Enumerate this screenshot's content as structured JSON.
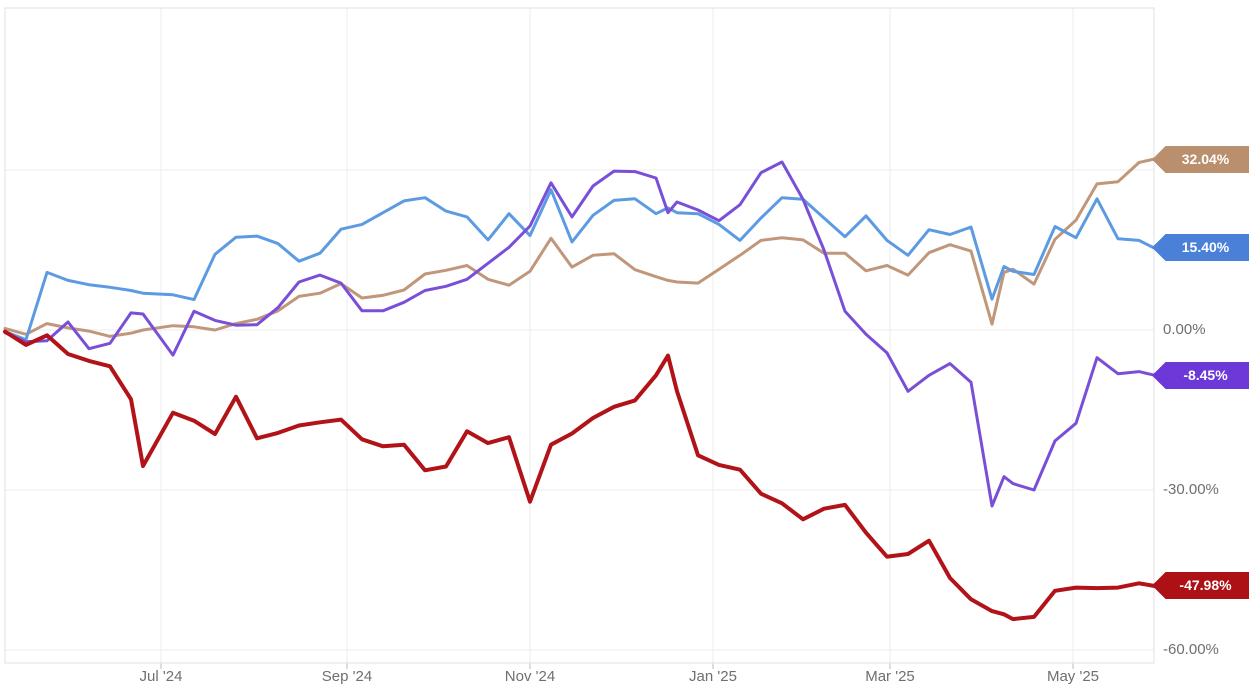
{
  "chart_data": {
    "type": "line",
    "title": "",
    "xlabel": "",
    "ylabel": "",
    "legend_position": "none",
    "grid": true,
    "y_unit": "percent",
    "ylim": [
      -62.5,
      60.5
    ],
    "x": [
      "2024-05-10",
      "2024-05-17",
      "2024-05-24",
      "2024-05-31",
      "2024-06-07",
      "2024-06-14",
      "2024-06-21",
      "2024-06-25",
      "2024-07-05",
      "2024-07-12",
      "2024-07-19",
      "2024-07-26",
      "2024-08-02",
      "2024-08-09",
      "2024-08-16",
      "2024-08-23",
      "2024-08-30",
      "2024-09-06",
      "2024-09-13",
      "2024-09-20",
      "2024-09-27",
      "2024-10-04",
      "2024-10-11",
      "2024-10-18",
      "2024-10-25",
      "2024-11-01",
      "2024-11-08",
      "2024-11-15",
      "2024-11-22",
      "2024-11-29",
      "2024-12-06",
      "2024-12-13",
      "2024-12-17",
      "2024-12-20",
      "2024-12-27",
      "2025-01-03",
      "2025-01-10",
      "2025-01-17",
      "2025-01-24",
      "2025-01-31",
      "2025-02-07",
      "2025-02-14",
      "2025-02-21",
      "2025-02-28",
      "2025-03-07",
      "2025-03-14",
      "2025-03-21",
      "2025-03-28",
      "2025-04-04",
      "2025-04-08",
      "2025-04-11",
      "2025-04-18",
      "2025-04-25",
      "2025-05-02",
      "2025-05-09",
      "2025-05-16",
      "2025-05-23",
      "2025-05-28"
    ],
    "series": [
      {
        "name": "tan-series",
        "color": "#C0977A",
        "label_color": "#B98F6E",
        "end_label": "32.04%",
        "end_value": 32.04,
        "line_width": 3,
        "values": [
          0.3,
          -0.8,
          1.2,
          0.4,
          -0.2,
          -1.2,
          -0.6,
          0.0,
          0.8,
          0.6,
          0.0,
          1.2,
          2.0,
          3.6,
          6.3,
          6.9,
          8.7,
          6.0,
          6.5,
          7.5,
          10.5,
          11.2,
          12.1,
          9.5,
          8.4,
          11.0,
          17.2,
          11.8,
          14.0,
          14.3,
          11.3,
          10.0,
          9.3,
          9.0,
          8.8,
          11.4,
          14.0,
          16.8,
          17.3,
          16.9,
          14.4,
          14.4,
          11.1,
          12.1,
          10.3,
          14.5,
          16.0,
          14.8,
          1.1,
          10.8,
          11.4,
          8.6,
          17.0,
          20.6,
          27.4,
          27.8,
          31.4,
          32.04
        ]
      },
      {
        "name": "blue-series",
        "color": "#5C9BE2",
        "label_color": "#4A80D8",
        "end_label": "15.40%",
        "end_value": 15.4,
        "line_width": 3,
        "values": [
          -0.3,
          -1.8,
          10.8,
          9.3,
          8.5,
          8.0,
          7.4,
          6.9,
          6.6,
          5.7,
          14.2,
          17.4,
          17.6,
          16.2,
          12.9,
          14.4,
          18.9,
          19.8,
          22.0,
          24.2,
          24.8,
          22.3,
          21.2,
          16.9,
          21.8,
          17.7,
          26.3,
          16.5,
          21.5,
          24.3,
          24.6,
          21.8,
          22.9,
          22.0,
          21.8,
          19.8,
          16.8,
          21.0,
          24.8,
          24.5,
          21.0,
          17.5,
          21.4,
          16.8,
          14.0,
          18.8,
          17.9,
          19.3,
          5.8,
          11.9,
          11.0,
          10.4,
          19.4,
          17.3,
          24.6,
          17.1,
          16.8,
          15.4
        ]
      },
      {
        "name": "purple-series",
        "color": "#7A4FD8",
        "label_color": "#6C38D8",
        "end_label": "-8.45%",
        "end_value": -8.45,
        "line_width": 3,
        "values": [
          -0.5,
          -2.2,
          -2.0,
          1.5,
          -3.5,
          -2.5,
          3.2,
          3.0,
          -4.7,
          3.5,
          1.8,
          0.9,
          1.0,
          4.2,
          9.0,
          10.3,
          8.8,
          3.6,
          3.6,
          5.2,
          7.4,
          8.2,
          9.5,
          12.5,
          15.5,
          19.5,
          27.6,
          21.2,
          27.0,
          29.8,
          29.7,
          28.5,
          22.0,
          24.0,
          22.5,
          20.5,
          23.5,
          29.5,
          31.5,
          24.5,
          15.0,
          3.5,
          -0.8,
          -4.3,
          -11.5,
          -8.5,
          -6.3,
          -9.8,
          -33.0,
          -27.5,
          -28.8,
          -30.0,
          -20.8,
          -17.5,
          -5.2,
          -8.2,
          -7.8,
          -8.45
        ]
      },
      {
        "name": "red-series",
        "color": "#B11318",
        "label_color": "#AD1015",
        "end_label": "-47.98%",
        "end_value": -47.98,
        "line_width": 4,
        "values": [
          -0.3,
          -2.8,
          -1.0,
          -4.5,
          -5.8,
          -6.8,
          -13.0,
          -25.5,
          -15.5,
          -17.0,
          -19.5,
          -12.5,
          -20.3,
          -19.3,
          -17.9,
          -17.3,
          -16.8,
          -20.5,
          -21.8,
          -21.5,
          -26.3,
          -25.6,
          -19.0,
          -21.2,
          -20.1,
          -32.2,
          -21.5,
          -19.4,
          -16.5,
          -14.4,
          -13.2,
          -8.5,
          -4.8,
          -11.5,
          -23.5,
          -25.3,
          -26.2,
          -30.7,
          -32.5,
          -35.5,
          -33.5,
          -32.8,
          -38.0,
          -42.5,
          -42.0,
          -39.5,
          -46.5,
          -50.5,
          -52.7,
          -53.3,
          -54.2,
          -53.8,
          -48.9,
          -48.3,
          -48.4,
          -48.3,
          -47.5,
          -47.98
        ]
      }
    ],
    "x_axis": {
      "labels": [
        "Jul '24",
        "Sep '24",
        "Nov '24",
        "Jan '25",
        "Mar '25",
        "May '25"
      ],
      "dates": [
        "2024-07-01",
        "2024-09-01",
        "2024-11-01",
        "2025-01-01",
        "2025-03-01",
        "2025-05-01"
      ]
    },
    "y_axis": {
      "side": "right",
      "labels": [
        "0.00%",
        "-30.00%",
        "-60.00%"
      ],
      "values": [
        0,
        -30,
        -60
      ],
      "gridline_values": [
        30,
        0,
        -30,
        -60
      ]
    },
    "colors": {
      "background": "#ffffff",
      "border": "#e0e0e0",
      "gridline": "#ededed",
      "tick": "#bdbdbd",
      "axis_text": "#6f6f6f"
    }
  }
}
